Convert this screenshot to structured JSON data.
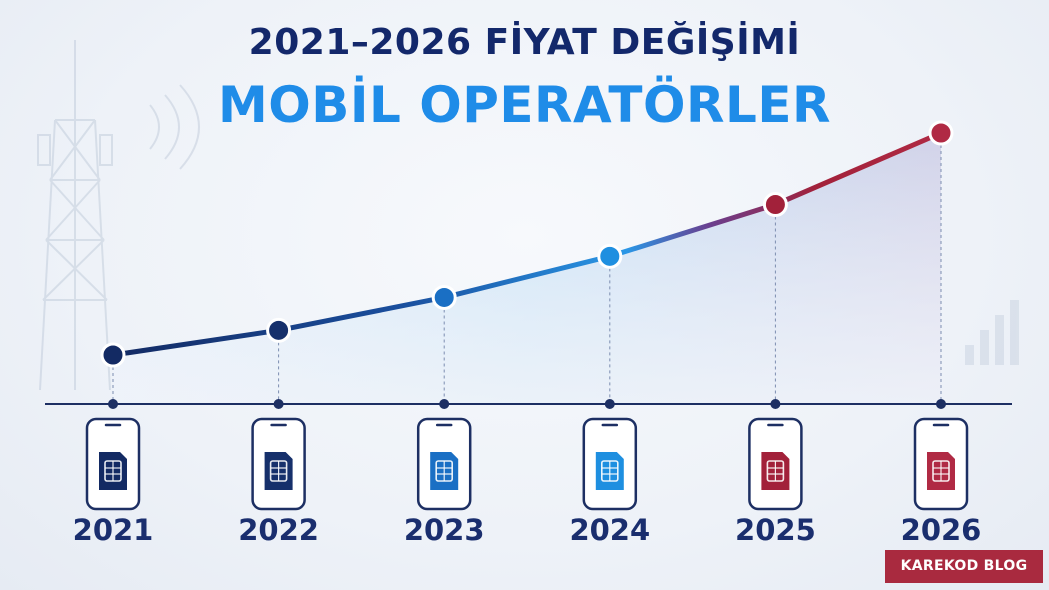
{
  "header": {
    "title_line1": "2021–2026 FİYAT DEĞİŞİMİ",
    "title_line2": "MOBİL OPERATÖRLER"
  },
  "badge": {
    "text": "KAREKOD BLOG"
  },
  "icons": {
    "background_left": "cell-tower-icon",
    "background_right": "signal-bars-icon",
    "year_marker": "phone-sim-icon"
  },
  "colors": {
    "title_dark": "#13286b",
    "title_accent": "#1f8ce8",
    "point_colors": [
      "#132a63",
      "#16306b",
      "#1a6fc4",
      "#1e8fe0",
      "#a2213a",
      "#b02a44"
    ],
    "badge_bg": "#a92a3f"
  },
  "chart_data": {
    "type": "line",
    "title": "2021–2026 FİYAT DEĞİŞİMİ",
    "subtitle": "MOBİL OPERATÖRLER",
    "categories": [
      "2021",
      "2022",
      "2023",
      "2024",
      "2025",
      "2026"
    ],
    "series": [
      {
        "values": [
          100,
          130,
          170,
          220,
          283,
          370
        ]
      }
    ],
    "xlabel": "",
    "ylabel": "",
    "y_axis_shown": false,
    "grid": false,
    "area_fill": true
  }
}
